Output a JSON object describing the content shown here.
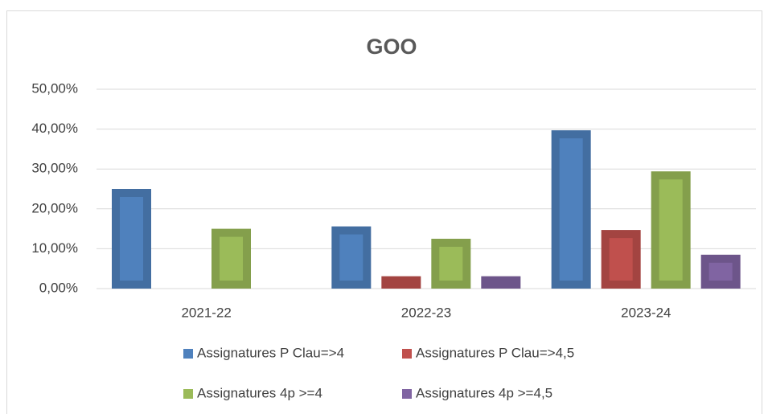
{
  "chart_data": {
    "type": "bar",
    "title": "GOO",
    "categories": [
      "2021-22",
      "2022-23",
      "2023-24"
    ],
    "series": [
      {
        "name": "Assignatures P Clau=>4",
        "color": "#4f81bd",
        "values": [
          25,
          15.6,
          39.7
        ]
      },
      {
        "name": "Assignatures P Clau=>4,5",
        "color": "#c0504d",
        "values": [
          0,
          3.1,
          14.7
        ]
      },
      {
        "name": "Assignatures 4p >=4",
        "color": "#9bbb59",
        "values": [
          15,
          12.5,
          29.4
        ]
      },
      {
        "name": "Assignatures 4p >=4,5",
        "color": "#8064a2",
        "values": [
          0,
          3.1,
          8.5
        ]
      }
    ],
    "ylim": [
      0,
      50
    ],
    "yticks": [
      {
        "value": 0,
        "label": "0,00%"
      },
      {
        "value": 10,
        "label": "10,00%"
      },
      {
        "value": 20,
        "label": "20,00%"
      },
      {
        "value": 30,
        "label": "30,00%"
      },
      {
        "value": 40,
        "label": "40,00%"
      },
      {
        "value": 50,
        "label": "50,00%"
      }
    ],
    "grid": true,
    "legend": "bottom"
  }
}
